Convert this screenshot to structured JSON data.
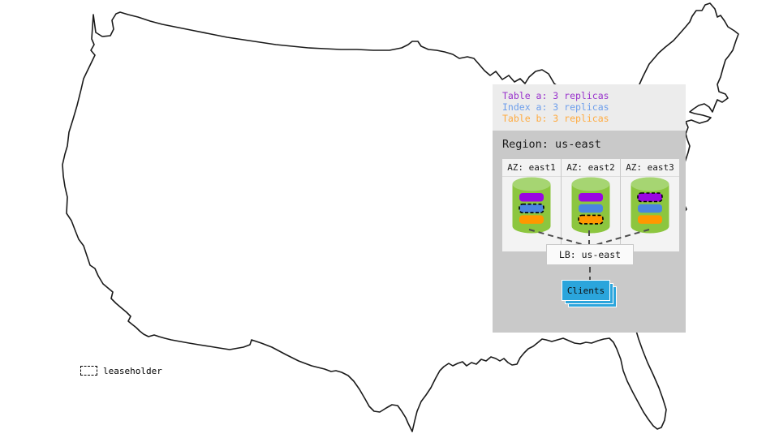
{
  "legend": {
    "items": [
      {
        "label": "Table a: 3 replicas",
        "color": "#9933cc"
      },
      {
        "label": "Index a: 3 replicas",
        "color": "#6d9eeb"
      },
      {
        "label": "Table b: 3 replicas",
        "color": "#ffab40"
      }
    ]
  },
  "region": {
    "title": "Region: us-east",
    "azs": [
      {
        "label": "AZ: east1",
        "replicas": [
          {
            "name": "table-a",
            "color": "table_a",
            "leaseholder": false
          },
          {
            "name": "index-a",
            "color": "index_a",
            "leaseholder": true
          },
          {
            "name": "table-b",
            "color": "table_b",
            "leaseholder": false
          }
        ]
      },
      {
        "label": "AZ: east2",
        "replicas": [
          {
            "name": "table-a",
            "color": "table_a",
            "leaseholder": false
          },
          {
            "name": "index-a",
            "color": "index_a",
            "leaseholder": false
          },
          {
            "name": "table-b",
            "color": "table_b",
            "leaseholder": true
          }
        ]
      },
      {
        "label": "AZ: east3",
        "replicas": [
          {
            "name": "table-a",
            "color": "table_a",
            "leaseholder": true
          },
          {
            "name": "index-a",
            "color": "index_a",
            "leaseholder": false
          },
          {
            "name": "table-b",
            "color": "table_b",
            "leaseholder": false
          }
        ]
      }
    ]
  },
  "lb": {
    "label": "LB: us-east"
  },
  "clients": {
    "label": "Clients"
  },
  "leaseholder_key": {
    "label": "leaseholder"
  },
  "colors": {
    "table_a": "#9906e2",
    "index_a": "#4a86e0",
    "table_b": "#ff9800",
    "cylinder_body": "#8cc63f",
    "cylinder_top": "#a6d572",
    "clients_blue": "#2ba5dc",
    "map_stroke": "#1a1a1a",
    "connector": "#4d4d4d"
  }
}
